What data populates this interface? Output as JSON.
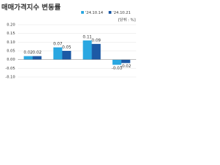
{
  "chart_data": {
    "type": "bar",
    "title": "매매가격지수 변동률",
    "unit": "[단위 : %]",
    "categories": [
      null,
      null,
      null,
      null
    ],
    "series": [
      {
        "name": "'24.10.14",
        "color": "#2aa7e1",
        "values": [
          0.02,
          0.07,
          0.11,
          -0.03
        ]
      },
      {
        "name": "'24.10.21",
        "color": "#1d5aa5",
        "values": [
          0.02,
          0.05,
          0.09,
          -0.02
        ]
      }
    ],
    "ylim": [
      -0.1,
      0.2
    ],
    "yticks": [
      {
        "value": -0.1,
        "label": "-0.10"
      },
      {
        "value": -0.05,
        "label": "-0.05"
      },
      {
        "value": 0,
        "label": "0.00"
      },
      {
        "value": 0.05,
        "label": "0.05"
      },
      {
        "value": 0.1,
        "label": "0.10"
      },
      {
        "value": 0.15,
        "label": "0.15"
      },
      {
        "value": 0.2,
        "label": "0.20"
      }
    ],
    "grid": true
  }
}
